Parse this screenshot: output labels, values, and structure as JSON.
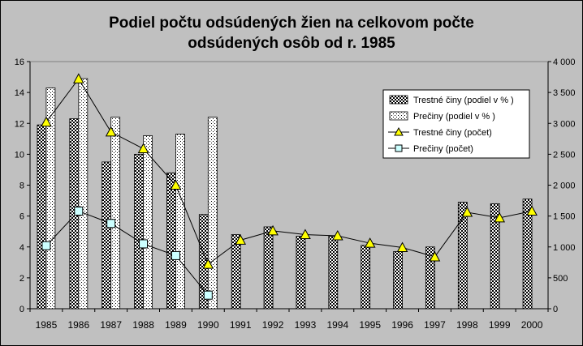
{
  "chart_data": {
    "type": "bar",
    "title_lines": [
      "Podiel počtu odsúdených žien na celkovom počte",
      "odsúdených osôb od r. 1985"
    ],
    "categories": [
      "1985",
      "1986",
      "1987",
      "1988",
      "1989",
      "1990",
      "1991",
      "1992",
      "1993",
      "1994",
      "1995",
      "1996",
      "1997",
      "1998",
      "1999",
      "2000"
    ],
    "y_left": {
      "min": 0,
      "max": 16,
      "step": 2,
      "tick_labels": [
        "0",
        "2",
        "4",
        "6",
        "8",
        "10",
        "12",
        "14",
        "16"
      ]
    },
    "y_right": {
      "min": 0,
      "max": 4000,
      "step": 500,
      "tick_labels": [
        "0",
        "500",
        "1 000",
        "1 500",
        "2 000",
        "2 500",
        "3 000",
        "3 500",
        "4 000"
      ]
    },
    "grid": false,
    "legend_position": "right",
    "series": [
      {
        "name": "Trestné činy (podiel v % )",
        "kind": "bar",
        "axis": "left",
        "pattern": "checker",
        "values": [
          11.9,
          12.3,
          9.5,
          10.0,
          8.8,
          6.1,
          4.8,
          5.3,
          4.7,
          4.7,
          4.1,
          3.7,
          4.0,
          6.9,
          6.8,
          7.1
        ]
      },
      {
        "name": "Prečiny (podiel v % )",
        "kind": "bar",
        "axis": "left",
        "pattern": "dots",
        "values": [
          14.3,
          14.9,
          12.4,
          11.2,
          11.3,
          12.4,
          null,
          null,
          null,
          null,
          null,
          null,
          null,
          null,
          null,
          null
        ]
      },
      {
        "name": "Trestné činy (počet)",
        "kind": "line",
        "axis": "right",
        "marker": "triangle",
        "color": "#ffff00",
        "values": [
          3020,
          3720,
          2860,
          2590,
          2000,
          720,
          1110,
          1260,
          1200,
          1180,
          1060,
          990,
          840,
          1560,
          1470,
          1580
        ]
      },
      {
        "name": "Prečiny (počet)",
        "kind": "line",
        "axis": "right",
        "marker": "square",
        "color": "#ccffff",
        "values": [
          1020,
          1580,
          1380,
          1050,
          860,
          220,
          null,
          null,
          null,
          null,
          null,
          null,
          null,
          null,
          null,
          null
        ]
      }
    ]
  }
}
